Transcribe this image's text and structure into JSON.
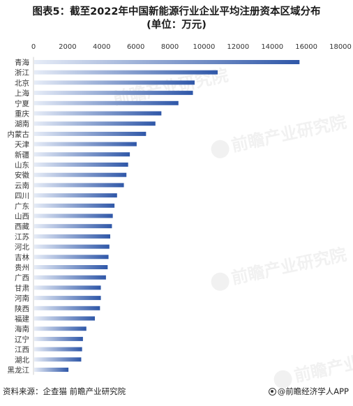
{
  "title_line1": "图表5：截至2022年中国新能源行业企业平均注册资本区域分布",
  "title_line2": "(单位：万元)",
  "source": "资料来源：企查猫 前瞻产业研究院",
  "brand": "@前瞻经济学人APP",
  "watermark": "前瞻产业研究院",
  "colors": {
    "bar_dark": "#2f57a8",
    "bar_light": "#e6ecf7",
    "axis_text": "#333333",
    "grid": "#e3e3e3"
  },
  "chart_data": {
    "type": "bar",
    "orientation": "horizontal",
    "title": "图表5：截至2022年中国新能源行业企业平均注册资本区域分布 (单位：万元)",
    "xlabel": "",
    "ylabel": "",
    "xlim": [
      0,
      18000
    ],
    "xticks": [
      0,
      2000,
      4000,
      6000,
      8000,
      10000,
      12000,
      14000,
      16000,
      18000
    ],
    "x_axis_position": "top",
    "grid": false,
    "categories": [
      "青海",
      "浙江",
      "北京",
      "上海",
      "宁夏",
      "重庆",
      "湖南",
      "内蒙古",
      "天津",
      "新疆",
      "山东",
      "安徽",
      "云南",
      "四川",
      "广东",
      "山西",
      "西藏",
      "江苏",
      "河北",
      "吉林",
      "贵州",
      "广西",
      "甘肃",
      "河南",
      "陕西",
      "福建",
      "海南",
      "辽宁",
      "江西",
      "湖北",
      "黑龙江"
    ],
    "values": [
      15600,
      10800,
      9450,
      9350,
      8500,
      7500,
      7150,
      6600,
      6050,
      5650,
      5550,
      5450,
      5300,
      4900,
      4750,
      4650,
      4600,
      4500,
      4450,
      4400,
      4350,
      4250,
      3950,
      3950,
      3900,
      3600,
      3100,
      2900,
      2850,
      2800,
      2050
    ]
  }
}
